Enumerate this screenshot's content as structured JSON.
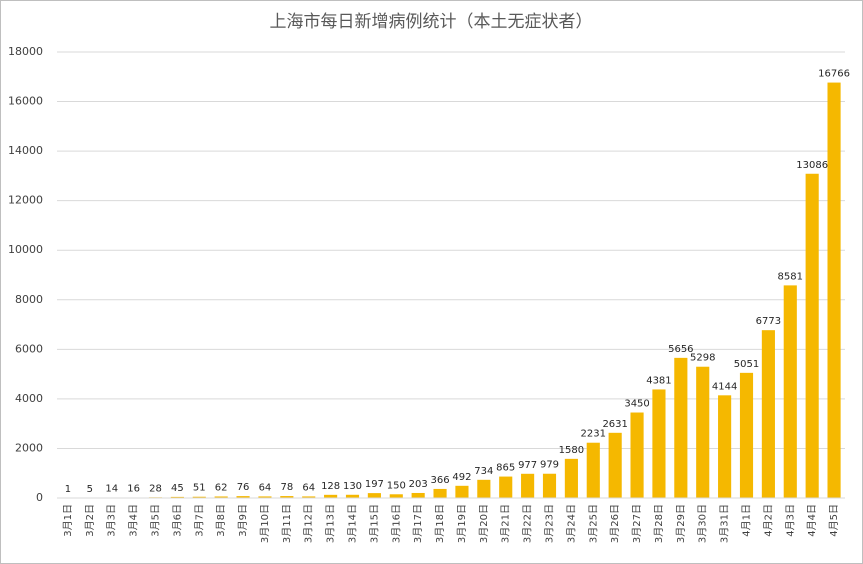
{
  "chart_data": {
    "type": "bar",
    "title": "上海市每日新增病例统计（本土无症状者）",
    "categories": [
      "3月1日",
      "3月2日",
      "3月3日",
      "3月4日",
      "3月5日",
      "3月6日",
      "3月7日",
      "3月8日",
      "3月9日",
      "3月10日",
      "3月11日",
      "3月12日",
      "3月13日",
      "3月14日",
      "3月15日",
      "3月16日",
      "3月17日",
      "3月18日",
      "3月19日",
      "3月20日",
      "3月21日",
      "3月22日",
      "3月23日",
      "3月24日",
      "3月25日",
      "3月26日",
      "3月27日",
      "3月28日",
      "3月29日",
      "3月30日",
      "3月31日",
      "4月1日",
      "4月2日",
      "4月3日",
      "4月4日",
      "4月5日"
    ],
    "values": [
      1,
      5,
      14,
      16,
      28,
      45,
      51,
      62,
      76,
      64,
      78,
      64,
      128,
      130,
      197,
      150,
      203,
      366,
      492,
      734,
      865,
      977,
      979,
      1580,
      2231,
      2631,
      3450,
      4381,
      5656,
      5298,
      4144,
      5051,
      6773,
      8581,
      13086,
      16766
    ],
    "color": "#f5b800",
    "ylim": [
      0,
      18000
    ],
    "yticks": [
      0,
      2000,
      4000,
      6000,
      8000,
      10000,
      12000,
      14000,
      16000,
      18000
    ],
    "grid": true
  }
}
